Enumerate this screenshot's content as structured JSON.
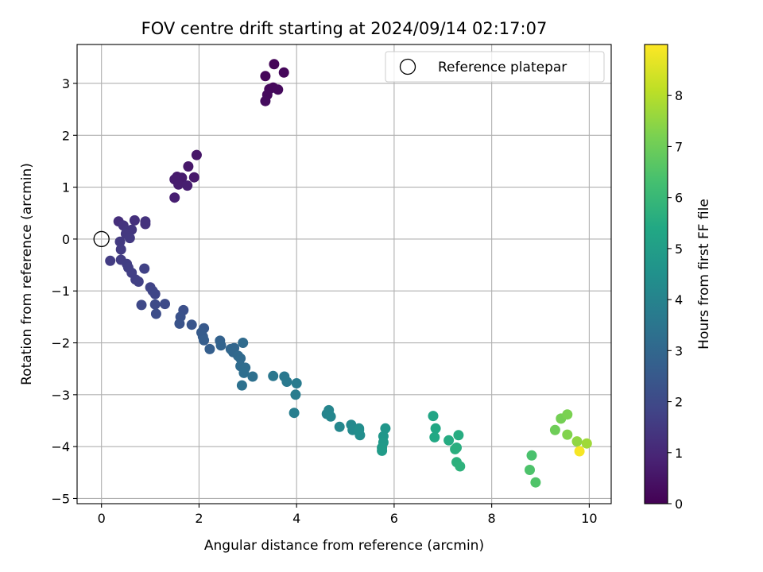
{
  "chart_data": {
    "type": "scatter",
    "title": "FOV centre drift starting at 2024/09/14 02:17:07",
    "xlabel": "Angular distance from reference (arcmin)",
    "ylabel": "Rotation from reference (arcmin)",
    "xlim": [
      -0.5,
      10.45
    ],
    "ylim": [
      -5.1,
      3.75
    ],
    "xticks": [
      0,
      2,
      4,
      6,
      8,
      10
    ],
    "yticks": [
      -5,
      -4,
      -3,
      -2,
      -1,
      0,
      1,
      2,
      3
    ],
    "grid": true,
    "legend": {
      "placement": "top-right",
      "entries": [
        "Reference platepar"
      ]
    },
    "reference_point": {
      "x": 0,
      "y": 0,
      "label": "Reference platepar"
    },
    "colorbar": {
      "label": "Hours from first FF file",
      "range": [
        0,
        9
      ],
      "ticks": [
        0,
        1,
        2,
        3,
        4,
        5,
        6,
        7,
        8
      ],
      "colormap": "viridis"
    },
    "points": [
      {
        "x": 3.36,
        "y": 3.14,
        "c": 0.1
      },
      {
        "x": 3.54,
        "y": 3.37,
        "c": 0.12
      },
      {
        "x": 3.74,
        "y": 3.21,
        "c": 0.15
      },
      {
        "x": 3.44,
        "y": 2.89,
        "c": 0.18
      },
      {
        "x": 3.52,
        "y": 2.92,
        "c": 0.2
      },
      {
        "x": 3.62,
        "y": 2.88,
        "c": 0.22
      },
      {
        "x": 3.4,
        "y": 2.78,
        "c": 0.25
      },
      {
        "x": 3.36,
        "y": 2.66,
        "c": 0.28
      },
      {
        "x": 1.95,
        "y": 1.62,
        "c": 0.55
      },
      {
        "x": 1.78,
        "y": 1.4,
        "c": 0.6
      },
      {
        "x": 1.9,
        "y": 1.19,
        "c": 0.62
      },
      {
        "x": 1.55,
        "y": 1.2,
        "c": 0.65
      },
      {
        "x": 1.65,
        "y": 1.18,
        "c": 0.68
      },
      {
        "x": 1.5,
        "y": 1.15,
        "c": 0.7
      },
      {
        "x": 1.58,
        "y": 1.05,
        "c": 0.72
      },
      {
        "x": 1.76,
        "y": 1.03,
        "c": 0.75
      },
      {
        "x": 1.5,
        "y": 0.8,
        "c": 0.78
      },
      {
        "x": 0.35,
        "y": 0.34,
        "c": 1.2
      },
      {
        "x": 0.68,
        "y": 0.36,
        "c": 1.25
      },
      {
        "x": 0.9,
        "y": 0.34,
        "c": 1.3
      },
      {
        "x": 0.9,
        "y": 0.29,
        "c": 1.32
      },
      {
        "x": 0.45,
        "y": 0.26,
        "c": 1.35
      },
      {
        "x": 0.52,
        "y": 0.16,
        "c": 1.4
      },
      {
        "x": 0.62,
        "y": 0.18,
        "c": 1.42
      },
      {
        "x": 0.5,
        "y": 0.1,
        "c": 1.45
      },
      {
        "x": 0.58,
        "y": 0.02,
        "c": 1.5
      },
      {
        "x": 0.38,
        "y": -0.05,
        "c": 1.52
      },
      {
        "x": 0.4,
        "y": -0.2,
        "c": 1.55
      },
      {
        "x": 0.18,
        "y": -0.42,
        "c": 1.58
      },
      {
        "x": 0.4,
        "y": -0.4,
        "c": 1.6
      },
      {
        "x": 0.52,
        "y": -0.48,
        "c": 1.62
      },
      {
        "x": 0.55,
        "y": -0.55,
        "c": 1.65
      },
      {
        "x": 0.62,
        "y": -0.65,
        "c": 1.68
      },
      {
        "x": 0.7,
        "y": -0.78,
        "c": 1.7
      },
      {
        "x": 0.76,
        "y": -0.82,
        "c": 1.72
      },
      {
        "x": 0.88,
        "y": -0.57,
        "c": 1.75
      },
      {
        "x": 1.0,
        "y": -0.93,
        "c": 1.8
      },
      {
        "x": 1.05,
        "y": -1.0,
        "c": 1.85
      },
      {
        "x": 1.1,
        "y": -1.06,
        "c": 1.9
      },
      {
        "x": 0.82,
        "y": -1.27,
        "c": 1.95
      },
      {
        "x": 1.1,
        "y": -1.26,
        "c": 2.0
      },
      {
        "x": 1.3,
        "y": -1.25,
        "c": 2.05
      },
      {
        "x": 1.12,
        "y": -1.44,
        "c": 2.1
      },
      {
        "x": 1.68,
        "y": -1.37,
        "c": 2.2
      },
      {
        "x": 1.62,
        "y": -1.5,
        "c": 2.25
      },
      {
        "x": 1.6,
        "y": -1.63,
        "c": 2.3
      },
      {
        "x": 1.85,
        "y": -1.65,
        "c": 2.35
      },
      {
        "x": 2.1,
        "y": -1.72,
        "c": 2.5
      },
      {
        "x": 2.05,
        "y": -1.8,
        "c": 2.55
      },
      {
        "x": 2.08,
        "y": -1.88,
        "c": 2.6
      },
      {
        "x": 2.1,
        "y": -1.95,
        "c": 2.65
      },
      {
        "x": 2.22,
        "y": -2.12,
        "c": 2.7
      },
      {
        "x": 2.43,
        "y": -1.96,
        "c": 2.8
      },
      {
        "x": 2.45,
        "y": -2.05,
        "c": 2.85
      },
      {
        "x": 2.65,
        "y": -2.12,
        "c": 2.9
      },
      {
        "x": 2.72,
        "y": -2.1,
        "c": 2.95
      },
      {
        "x": 2.7,
        "y": -2.18,
        "c": 3.0
      },
      {
        "x": 2.8,
        "y": -2.25,
        "c": 3.05
      },
      {
        "x": 2.85,
        "y": -2.3,
        "c": 3.1
      },
      {
        "x": 2.9,
        "y": -2.0,
        "c": 3.12
      },
      {
        "x": 2.85,
        "y": -2.45,
        "c": 3.15
      },
      {
        "x": 2.95,
        "y": -2.48,
        "c": 3.2
      },
      {
        "x": 2.92,
        "y": -2.58,
        "c": 3.25
      },
      {
        "x": 3.1,
        "y": -2.65,
        "c": 3.3
      },
      {
        "x": 2.88,
        "y": -2.82,
        "c": 3.35
      },
      {
        "x": 3.52,
        "y": -2.64,
        "c": 3.55
      },
      {
        "x": 3.75,
        "y": -2.65,
        "c": 3.6
      },
      {
        "x": 3.8,
        "y": -2.75,
        "c": 3.65
      },
      {
        "x": 4.0,
        "y": -2.78,
        "c": 3.7
      },
      {
        "x": 3.98,
        "y": -3.0,
        "c": 3.75
      },
      {
        "x": 3.95,
        "y": -3.35,
        "c": 3.8
      },
      {
        "x": 4.62,
        "y": -3.37,
        "c": 4.0
      },
      {
        "x": 4.66,
        "y": -3.3,
        "c": 4.05
      },
      {
        "x": 4.7,
        "y": -3.42,
        "c": 4.1
      },
      {
        "x": 4.88,
        "y": -3.62,
        "c": 4.15
      },
      {
        "x": 5.12,
        "y": -3.58,
        "c": 4.2
      },
      {
        "x": 5.15,
        "y": -3.68,
        "c": 4.25
      },
      {
        "x": 5.28,
        "y": -3.65,
        "c": 4.3
      },
      {
        "x": 5.3,
        "y": -3.78,
        "c": 4.35
      },
      {
        "x": 5.28,
        "y": -3.68,
        "c": 4.4
      },
      {
        "x": 5.82,
        "y": -3.65,
        "c": 4.7
      },
      {
        "x": 5.78,
        "y": -3.8,
        "c": 4.75
      },
      {
        "x": 5.78,
        "y": -3.92,
        "c": 4.8
      },
      {
        "x": 5.75,
        "y": -4.02,
        "c": 4.85
      },
      {
        "x": 5.75,
        "y": -4.08,
        "c": 4.9
      },
      {
        "x": 6.8,
        "y": -3.41,
        "c": 5.3
      },
      {
        "x": 6.85,
        "y": -3.65,
        "c": 5.35
      },
      {
        "x": 6.83,
        "y": -3.82,
        "c": 5.4
      },
      {
        "x": 7.12,
        "y": -3.88,
        "c": 5.5
      },
      {
        "x": 7.32,
        "y": -3.78,
        "c": 5.55
      },
      {
        "x": 7.28,
        "y": -4.02,
        "c": 5.6
      },
      {
        "x": 7.25,
        "y": -4.05,
        "c": 5.65
      },
      {
        "x": 7.28,
        "y": -4.3,
        "c": 5.7
      },
      {
        "x": 7.35,
        "y": -4.38,
        "c": 5.75
      },
      {
        "x": 8.82,
        "y": -4.17,
        "c": 6.4
      },
      {
        "x": 8.78,
        "y": -4.45,
        "c": 6.45
      },
      {
        "x": 8.9,
        "y": -4.69,
        "c": 6.5
      },
      {
        "x": 9.3,
        "y": -3.68,
        "c": 7.0
      },
      {
        "x": 9.42,
        "y": -3.46,
        "c": 7.1
      },
      {
        "x": 9.55,
        "y": -3.38,
        "c": 7.2
      },
      {
        "x": 9.55,
        "y": -3.77,
        "c": 7.3
      },
      {
        "x": 9.75,
        "y": -3.9,
        "c": 7.5
      },
      {
        "x": 9.95,
        "y": -3.94,
        "c": 7.7
      },
      {
        "x": 9.8,
        "y": -4.09,
        "c": 8.9
      }
    ]
  }
}
